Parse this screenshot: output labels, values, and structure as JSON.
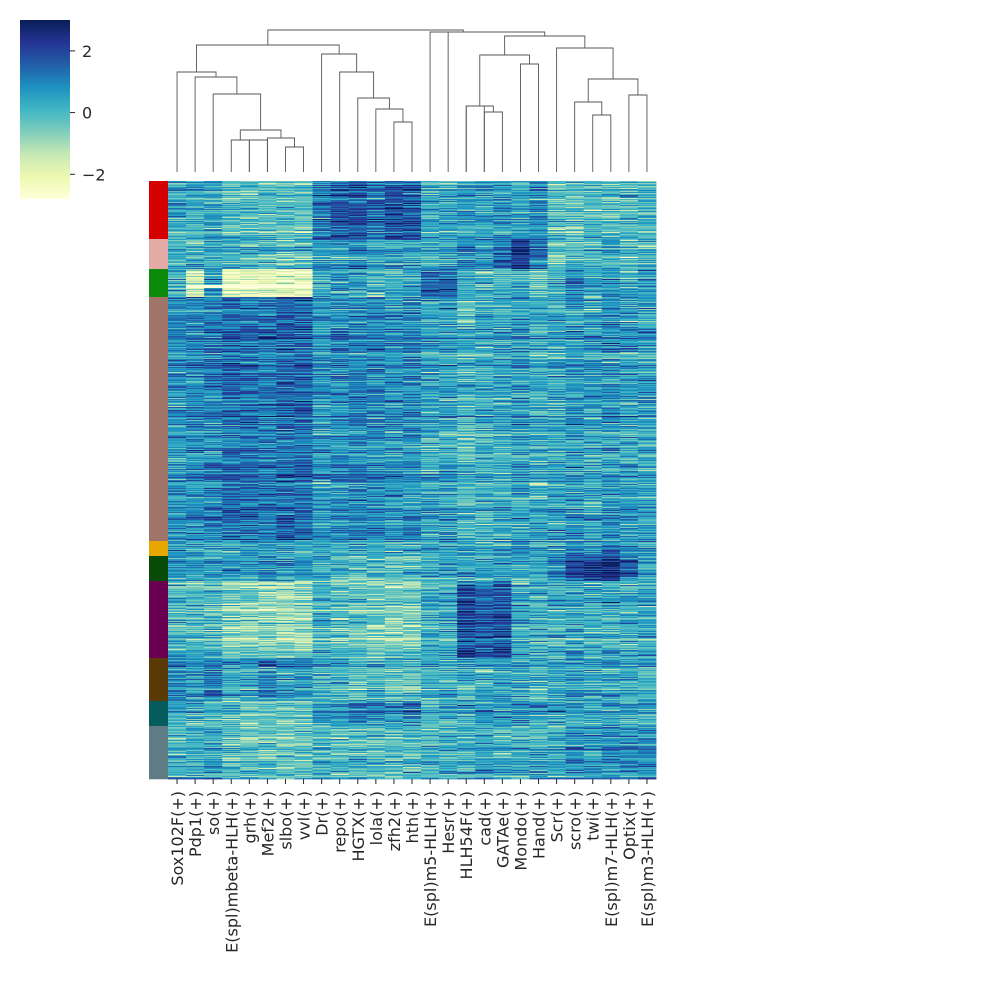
{
  "chart_data": {
    "type": "heatmap",
    "title": "",
    "xlabel": "",
    "ylabel": "",
    "columns": [
      "Sox102F(+)",
      "Pdp1(+)",
      "so(+)",
      "E(spl)mbeta-HLH(+)",
      "grh(+)",
      "Mef2(+)",
      "slbo(+)",
      "vvl(+)",
      "Dr(+)",
      "repo(+)",
      "HGTX(+)",
      "lola(+)",
      "zfh2(+)",
      "hth(+)",
      "E(spl)m5-HLH(+)",
      "Hesr(+)",
      "HLH54F(+)",
      "cad(+)",
      "GATAe(+)",
      "Mondo(+)",
      "Hand(+)",
      "Scr(+)",
      "scro(+)",
      "twi(+)",
      "E(spl)m7-HLH(+)",
      "Optix(+)",
      "E(spl)m3-HLH(+)"
    ],
    "colorbar": {
      "range": [
        -2.8,
        3
      ],
      "ticks": [
        2,
        0,
        -2
      ],
      "tick_labels": [
        "2",
        "0",
        "−2"
      ],
      "colormap": "YlGnBu",
      "stops": [
        "#ffffd9",
        "#edf8b1",
        "#c7e9b4",
        "#7fcdbb",
        "#41b6c4",
        "#1d91c0",
        "#225ea8",
        "#253494",
        "#081d58"
      ]
    },
    "row_groups": [
      {
        "color": "#d40000",
        "size": 58
      },
      {
        "color": "#e3aaa6",
        "size": 30
      },
      {
        "color": "#0b8a0b",
        "size": 28
      },
      {
        "color": "#a07468",
        "size": 244
      },
      {
        "color": "#e6a700",
        "size": 15
      },
      {
        "color": "#084a08",
        "size": 25
      },
      {
        "color": "#6b0050",
        "size": 77
      },
      {
        "color": "#5a3a06",
        "size": 43
      },
      {
        "color": "#065c5c",
        "size": 25
      },
      {
        "color": "#5f7b84",
        "size": 53
      }
    ],
    "column_group_profiles": {
      "note": "approximate mean z-score per row group (rows) and column (cols)",
      "values": [
        [
          0.3,
          0.2,
          0.3,
          -0.2,
          -0.3,
          -0.2,
          -0.3,
          -0.3,
          1.2,
          1.6,
          1.7,
          1.2,
          1.8,
          1.7,
          0.3,
          0.3,
          0.6,
          0.5,
          0.6,
          0.5,
          0.8,
          -0.2,
          -0.3,
          -0.2,
          -0.2,
          -0.1,
          -0.1
        ],
        [
          0.0,
          0.2,
          0.4,
          0.0,
          0.1,
          0.0,
          -0.1,
          0.0,
          0.7,
          0.6,
          0.7,
          0.6,
          0.5,
          0.5,
          0.2,
          0.3,
          1.1,
          0.8,
          1.3,
          2.6,
          1.3,
          -0.3,
          0.0,
          -0.2,
          0.2,
          0.0,
          0.0
        ],
        [
          0.2,
          -1.4,
          0.5,
          -2.0,
          -2.0,
          -2.0,
          -2.0,
          -2.0,
          0.4,
          0.3,
          0.2,
          -0.2,
          0.0,
          0.2,
          1.4,
          1.3,
          0.2,
          -0.1,
          0.1,
          0.2,
          -0.5,
          0.2,
          0.8,
          0.4,
          0.5,
          0.4,
          0.6
        ],
        [
          0.7,
          0.9,
          1.0,
          1.3,
          1.3,
          1.2,
          1.4,
          1.4,
          0.6,
          0.8,
          0.9,
          0.9,
          0.7,
          0.8,
          0.4,
          0.5,
          0.0,
          0.2,
          0.3,
          0.5,
          0.3,
          0.3,
          0.6,
          0.4,
          0.6,
          0.5,
          0.5
        ],
        [
          0.5,
          0.4,
          0.5,
          0.3,
          0.4,
          0.3,
          0.3,
          0.3,
          0.4,
          0.2,
          0.2,
          0.2,
          0.3,
          0.1,
          0.3,
          0.3,
          0.2,
          0.4,
          0.3,
          0.8,
          0.2,
          0.6,
          1.1,
          0.9,
          1.0,
          0.6,
          0.4
        ],
        [
          0.4,
          0.5,
          0.6,
          0.6,
          0.5,
          0.7,
          0.6,
          0.5,
          0.3,
          0.0,
          -0.2,
          -0.1,
          -0.2,
          -0.3,
          0.2,
          0.3,
          0.4,
          0.3,
          0.5,
          0.3,
          0.1,
          0.9,
          1.9,
          2.1,
          2.3,
          1.4,
          0.6
        ],
        [
          0.1,
          0.0,
          0.0,
          -0.6,
          -0.7,
          -0.8,
          -0.9,
          -0.9,
          0.2,
          -0.2,
          -0.3,
          -0.4,
          -0.5,
          -0.5,
          0.2,
          0.3,
          1.9,
          1.6,
          1.8,
          0.3,
          0.2,
          0.2,
          0.5,
          0.3,
          0.4,
          0.3,
          0.4
        ],
        [
          0.8,
          0.6,
          1.1,
          0.4,
          0.5,
          1.0,
          0.6,
          0.6,
          0.2,
          0.1,
          0.0,
          0.0,
          -0.2,
          -0.3,
          0.2,
          0.3,
          0.3,
          0.4,
          0.3,
          0.4,
          0.2,
          0.3,
          0.5,
          0.4,
          0.4,
          0.3,
          0.3
        ],
        [
          0.3,
          0.2,
          0.1,
          -0.4,
          -0.5,
          -0.4,
          -0.5,
          -0.5,
          0.5,
          0.7,
          0.8,
          0.9,
          0.6,
          1.0,
          0.2,
          0.3,
          0.4,
          0.5,
          0.4,
          0.5,
          0.4,
          0.2,
          0.3,
          0.3,
          0.4,
          0.2,
          0.3
        ],
        [
          0.2,
          0.3,
          0.4,
          -0.1,
          -0.2,
          -0.1,
          -0.3,
          -0.2,
          0.2,
          0.1,
          0.0,
          0.0,
          -0.1,
          0.0,
          0.3,
          0.3,
          0.3,
          0.4,
          0.3,
          0.4,
          0.4,
          0.3,
          0.9,
          0.8,
          0.9,
          0.8,
          1.0
        ]
      ]
    },
    "dendrogram": {
      "merges": [
        [
          0,
          5,
          0.2
        ],
        [
          2,
          3,
          0.2
        ],
        [
          0,
          4,
          0.55
        ],
        [
          0,
          1,
          0.55
        ],
        [
          0,
          2,
          0.7
        ],
        [
          0,
          3,
          0.98
        ],
        [
          4,
          6,
          0.53
        ],
        [
          4,
          5,
          0.65
        ],
        [
          3,
          6,
          0.88
        ],
        [
          5,
          7,
          0.95
        ],
        [
          0,
          6,
          1.5
        ],
        [
          1,
          2,
          1.65
        ]
      ]
    }
  }
}
